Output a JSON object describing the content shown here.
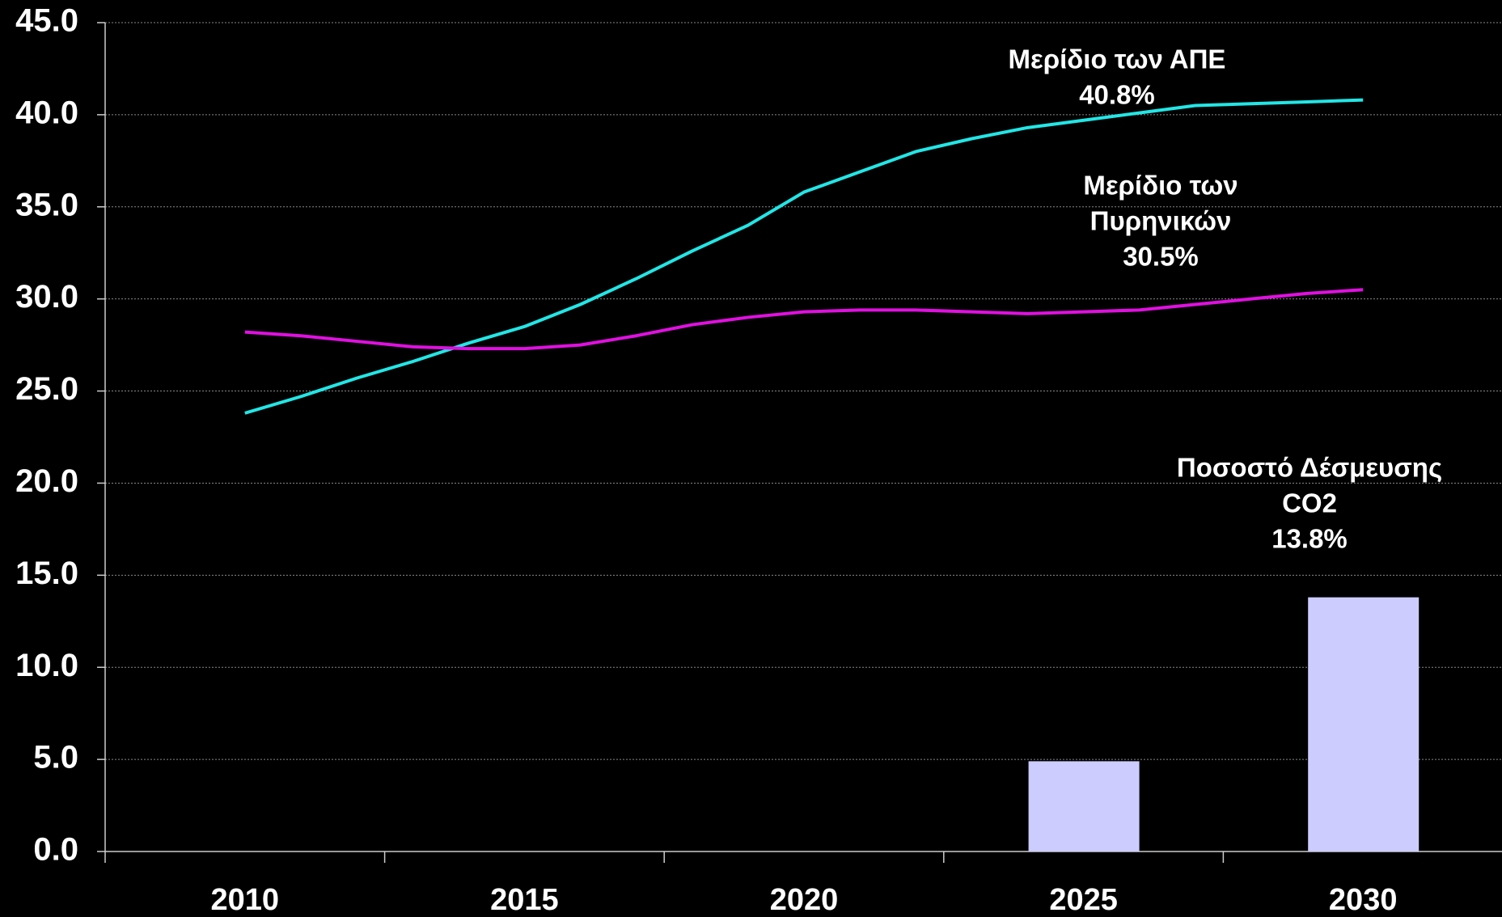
{
  "chart_data": {
    "type": "line",
    "x": [
      2010,
      2011,
      2012,
      2013,
      2014,
      2015,
      2016,
      2017,
      2018,
      2019,
      2020,
      2021,
      2022,
      2023,
      2024,
      2025,
      2026,
      2027,
      2028,
      2029,
      2030
    ],
    "xlim": [
      2007.5,
      2032.5
    ],
    "xticks": [
      2010,
      2015,
      2020,
      2025,
      2030
    ],
    "ylim": [
      0,
      45
    ],
    "yticks": [
      {
        "value": 0,
        "label": "0.0"
      },
      {
        "value": 5,
        "label": "5.0"
      },
      {
        "value": 10,
        "label": "10.0"
      },
      {
        "value": 15,
        "label": "15.0"
      },
      {
        "value": 20,
        "label": "20.0"
      },
      {
        "value": 25,
        "label": "25.0"
      },
      {
        "value": 30,
        "label": "30.0"
      },
      {
        "value": 35,
        "label": "35.0"
      },
      {
        "value": 40,
        "label": "40.0"
      },
      {
        "value": 45,
        "label": "45.0"
      }
    ],
    "grid": true,
    "series": [
      {
        "color": "#22e6e6",
        "values": [
          23.8,
          24.7,
          25.7,
          26.6,
          27.6,
          28.5,
          29.7,
          31.1,
          32.6,
          34.0,
          35.8,
          36.9,
          38.0,
          38.7,
          39.3,
          39.7,
          40.1,
          40.5,
          40.6,
          40.7,
          40.8
        ]
      },
      {
        "color": "#e010e0",
        "values": [
          28.2,
          28.0,
          27.7,
          27.4,
          27.3,
          27.3,
          27.5,
          28.0,
          28.6,
          29.0,
          29.3,
          29.4,
          29.4,
          29.3,
          29.2,
          29.3,
          29.4,
          29.7,
          30.0,
          30.3,
          30.5
        ]
      }
    ],
    "bars": {
      "type": "bar",
      "color": "#ccccff",
      "x": [
        2025,
        2030
      ],
      "values": [
        4.9,
        13.8
      ]
    },
    "annotations": [
      {
        "lines": [
          "Μερίδιο των ΑΠΕ",
          "40.8%"
        ]
      },
      {
        "lines": [
          "Μερίδιο των",
          "Πυρηνικών",
          "30.5%"
        ]
      },
      {
        "lines": [
          "Ποσοστό Δέσμευσης",
          "CO2",
          "13.8%"
        ]
      }
    ]
  }
}
